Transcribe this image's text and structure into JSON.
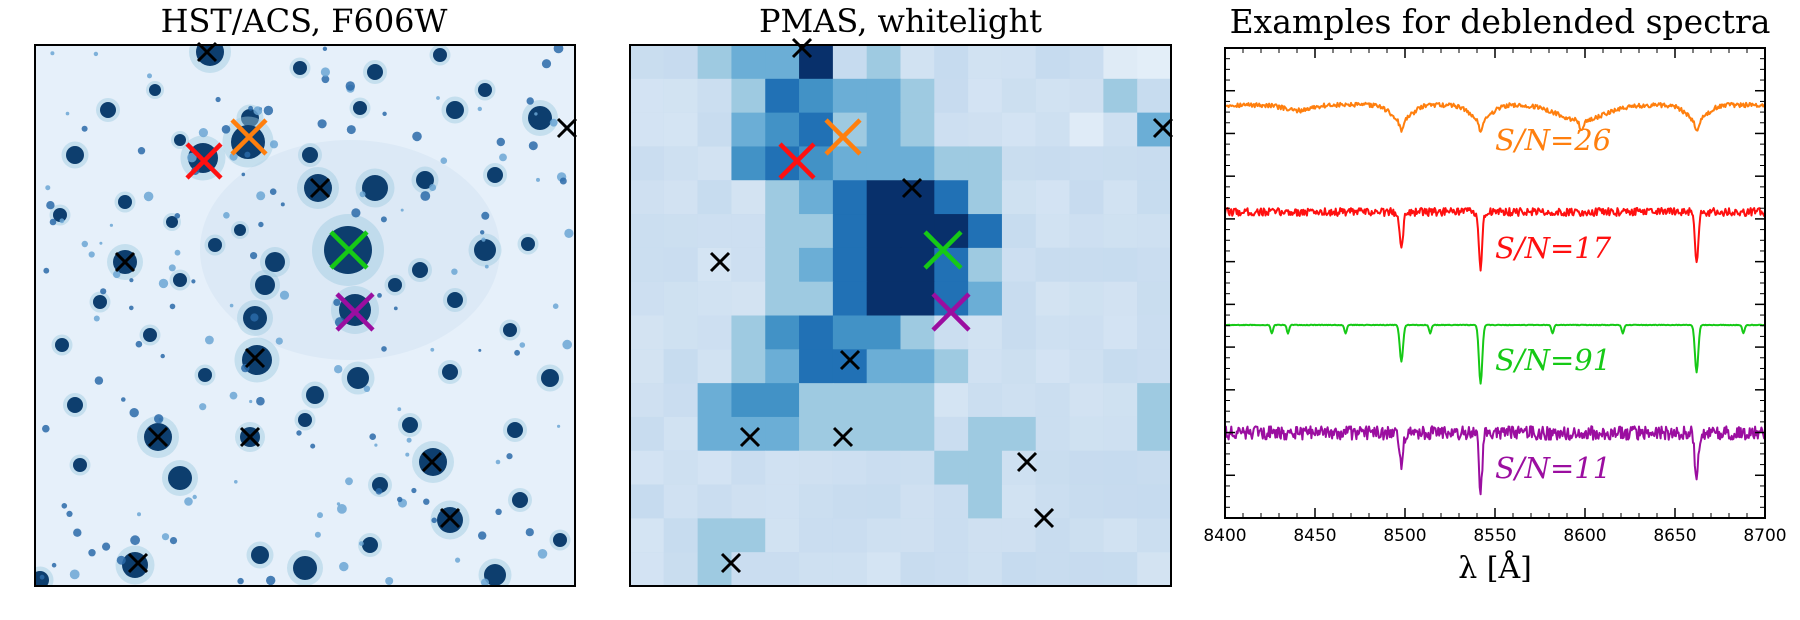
{
  "panels": {
    "hst": {
      "title": "HST/ACS, F606W"
    },
    "pmas": {
      "title": "PMAS, whitelight"
    },
    "spectra": {
      "title": "Examples for deblended spectra"
    }
  },
  "colors": {
    "orange": "#ff7f0e",
    "red": "#ff1010",
    "green": "#16c916",
    "purple": "#9b0ea0",
    "marker_black": "#000000",
    "pmas_ramp": [
      "#dce9f6",
      "#c6dbef",
      "#9ecae1",
      "#6baed6",
      "#4292c6",
      "#2171b5",
      "#08306b"
    ],
    "hst_background": "#e6f0fa",
    "hst_star": "#0d3e6e"
  },
  "chart_data": {
    "type": "line",
    "title": "Examples for deblended spectra",
    "xlabel": "λ [Å]",
    "xlim": [
      8400,
      8700
    ],
    "xticks": [
      8400,
      8450,
      8500,
      8550,
      8600,
      8650,
      8700
    ],
    "y_ticklabels_shown": false,
    "series": [
      {
        "color": "orange",
        "snr_label": "S/N=26",
        "snr_value": 26,
        "kind": "broad-paschen",
        "absorption_lines": [
          8498,
          8542,
          8598,
          8662
        ],
        "noise": 0.05
      },
      {
        "color": "red",
        "snr_label": "S/N=17",
        "snr_value": 17,
        "kind": "calcium-triplet",
        "absorption_lines": [
          8498,
          8542,
          8662
        ],
        "noise": 0.09
      },
      {
        "color": "green",
        "snr_label": "S/N=91",
        "snr_value": 91,
        "kind": "calcium-triplet",
        "absorption_lines": [
          8498,
          8542,
          8662
        ],
        "noise": 0.01
      },
      {
        "color": "purple",
        "snr_label": "S/N=11",
        "snr_value": 11,
        "kind": "calcium-triplet",
        "absorption_lines": [
          8498,
          8542,
          8662
        ],
        "noise": 0.15
      }
    ]
  }
}
